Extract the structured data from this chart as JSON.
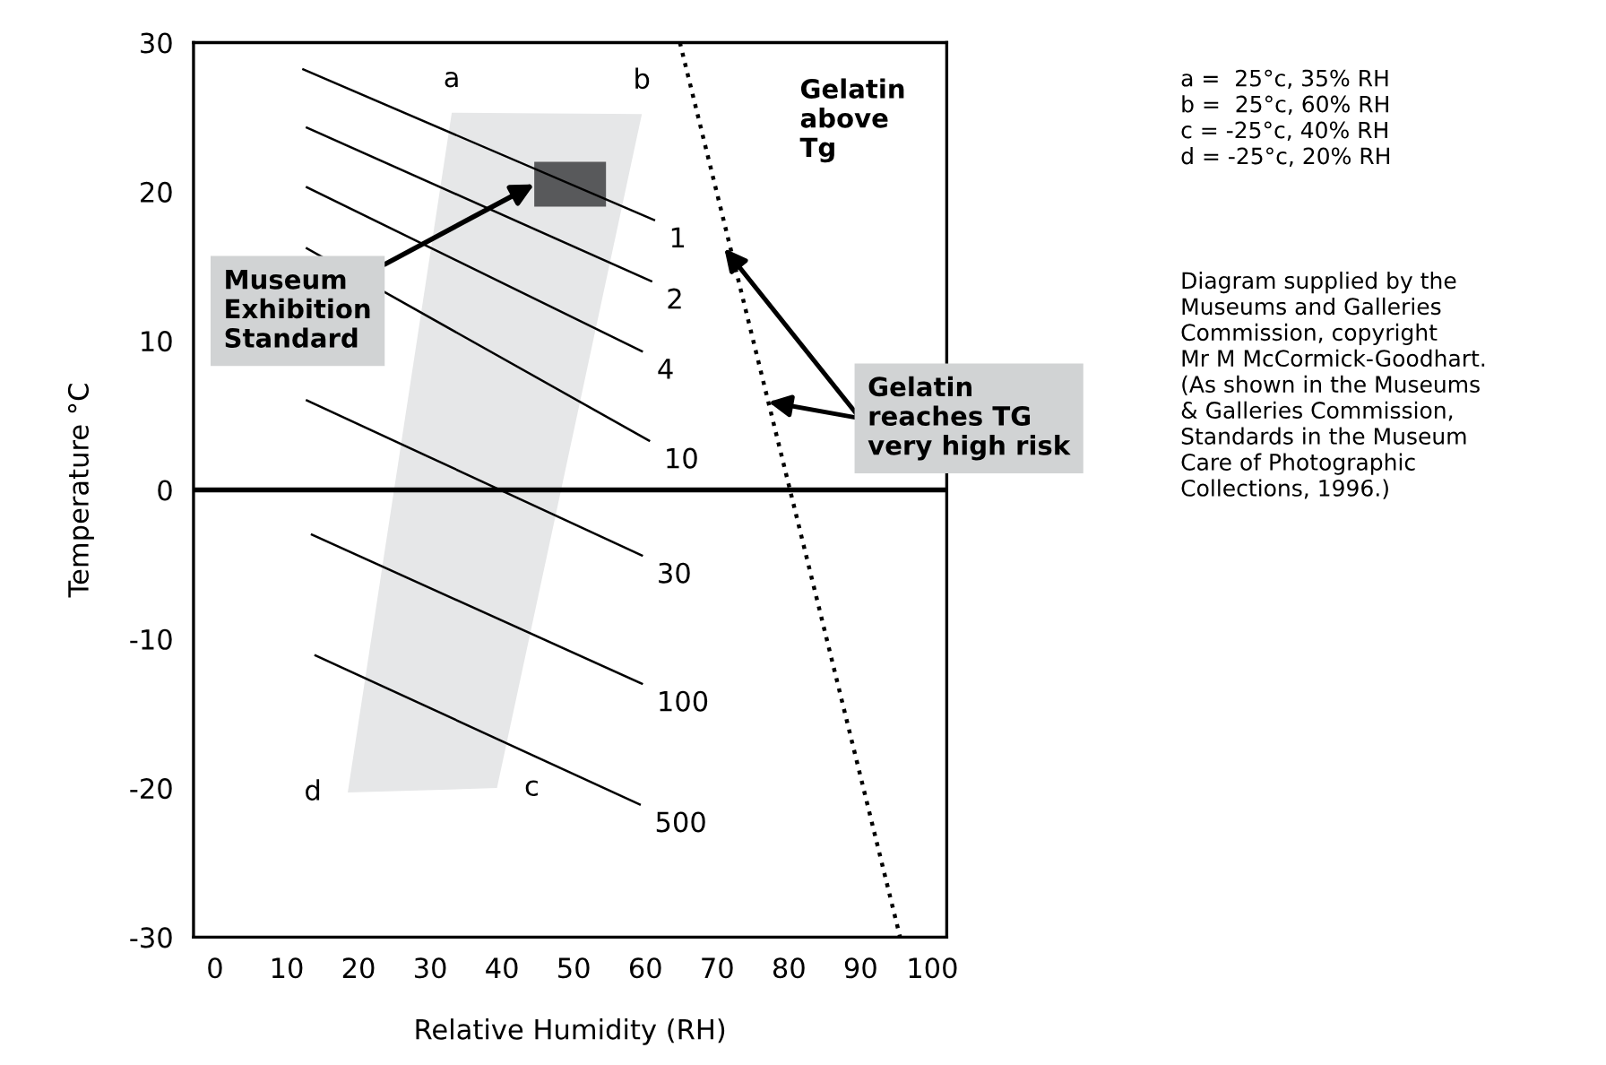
{
  "chart_data": {
    "type": "line",
    "xlabel": "Relative Humidity (RH)",
    "ylabel": "Temperature °C",
    "xlim": [
      -3,
      102
    ],
    "ylim": [
      -30,
      30
    ],
    "xticks": [
      0,
      10,
      20,
      30,
      40,
      50,
      60,
      70,
      80,
      90,
      100
    ],
    "yticks": [
      -30,
      -20,
      -10,
      0,
      10,
      20,
      30
    ],
    "grid": false,
    "marker": "none",
    "series": [
      {
        "type": "area",
        "color": "#e6e7e8",
        "x": [
          33,
          59.5,
          39.3,
          18.5
        ],
        "values": [
          25.3,
          25.2,
          -20,
          -20.3
        ]
      },
      {
        "type": "area",
        "color": "#58595b",
        "x": [
          44.5,
          54.5,
          54.5,
          44.5
        ],
        "values": [
          22,
          22,
          19,
          19
        ]
      },
      {
        "name": "1",
        "color": "#000000",
        "line_style": "solid",
        "x": [
          12.3,
          61.2
        ],
        "values": [
          28.2,
          18.1
        ]
      },
      {
        "name": "2",
        "color": "#000000",
        "line_style": "solid",
        "x": [
          12.8,
          60.8
        ],
        "values": [
          24.3,
          14
        ]
      },
      {
        "name": "4",
        "color": "#000000",
        "line_style": "solid",
        "x": [
          12.8,
          59.5
        ],
        "values": [
          20.3,
          9.3
        ]
      },
      {
        "name": "10",
        "color": "#000000",
        "line_style": "solid",
        "x": [
          12.8,
          60.5
        ],
        "values": [
          16.2,
          3.3
        ]
      },
      {
        "name": "30",
        "color": "#000000",
        "line_style": "solid",
        "x": [
          12.8,
          59.5
        ],
        "values": [
          6,
          -4.4
        ]
      },
      {
        "name": "100",
        "color": "#000000",
        "line_style": "solid",
        "x": [
          13.5,
          59.5
        ],
        "values": [
          -3,
          -13
        ]
      },
      {
        "name": "500",
        "color": "#000000",
        "line_style": "solid",
        "x": [
          14,
          59.2
        ],
        "values": [
          -11.1,
          -21.1
        ]
      },
      {
        "color": "#000000",
        "line_style": "dotted",
        "x": [
          64.8,
          95.5
        ],
        "values": [
          30,
          -30
        ]
      }
    ],
    "ref_lines": [
      {
        "axis": "y",
        "value": 0,
        "color": "#000000"
      }
    ],
    "annotations": [
      "a",
      "b",
      "c",
      "d",
      {
        "text": "Museum\nExhibition\nStandard",
        "x": 44.5,
        "y": 20.5
      },
      "Gelatin\nabove\nTg",
      {
        "text": "Gelatin\nreaches TG\nvery high risk",
        "x": 71,
        "y": 16.2
      },
      "a =  25°c, 35% RH\nb =  25°c, 60% RH\nc = -25°c, 40% RH\nd = -25°c, 20% RH",
      "Diagram supplied by the\nMuseums and Galleries\nCommission, copyright\nMr M McCormick-Goodhart.\n(As shown in the Museums\n& Galleries Commission,\nStandards in the Museum\nCare of Photographic\nCollections, 1996.)"
    ]
  }
}
